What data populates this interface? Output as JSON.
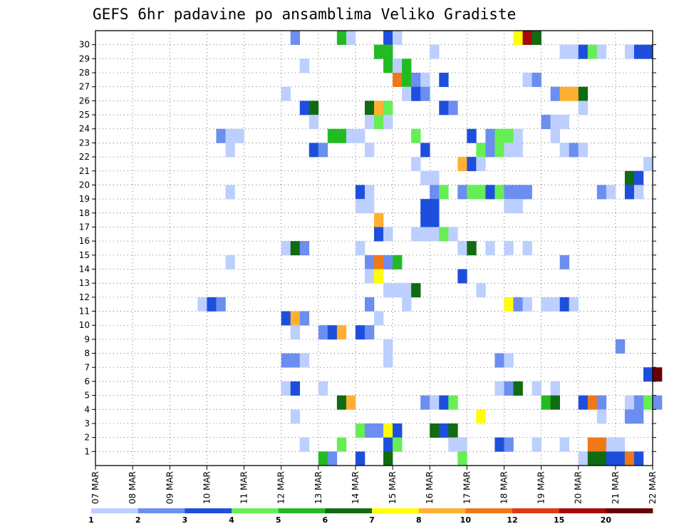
{
  "chart_data": {
    "type": "heatmap",
    "title": "GEFS 6hr padavine po ansamblima Veliko Gradiste",
    "xlabel": "",
    "ylabel": "",
    "x_categories": [
      "07 MAR",
      "08 MAR",
      "09 MAR",
      "10 MAR",
      "11 MAR",
      "12 MAR",
      "13 MAR",
      "14 MAR",
      "15 MAR",
      "16 MAR",
      "17 MAR",
      "18 MAR",
      "19 MAR",
      "20 MAR",
      "21 MAR",
      "22 MAR"
    ],
    "y_range": [
      0,
      30
    ],
    "y_ticks": [
      1,
      2,
      3,
      4,
      5,
      6,
      7,
      8,
      9,
      10,
      11,
      12,
      13,
      14,
      15,
      16,
      17,
      18,
      19,
      20,
      21,
      22,
      23,
      24,
      25,
      26,
      27,
      28,
      29,
      30
    ],
    "grid": true,
    "x_step_days": 0.25,
    "colorbar": {
      "levels": [
        "1",
        "2",
        "3",
        "4",
        "5",
        "6",
        "7",
        "8",
        "10",
        "12",
        "15",
        "20"
      ],
      "colors": [
        "#bccfff",
        "#6b8ef0",
        "#1e4fdc",
        "#66ee55",
        "#22bb22",
        "#116b11",
        "#ffff00",
        "#ffb030",
        "#f07818",
        "#e03a10",
        "#a80808",
        "#680000"
      ]
    },
    "cells": [
      [
        30,
        5.25,
        1
      ],
      [
        30,
        6.5,
        4
      ],
      [
        30,
        6.75,
        0
      ],
      [
        30,
        7.75,
        2
      ],
      [
        30,
        8.0,
        0
      ],
      [
        30,
        11.25,
        6
      ],
      [
        30,
        11.5,
        10
      ],
      [
        30,
        11.75,
        5
      ],
      [
        29,
        7.5,
        4
      ],
      [
        29,
        7.75,
        4
      ],
      [
        29,
        9.0,
        0
      ],
      [
        29,
        12.5,
        0
      ],
      [
        29,
        12.75,
        0
      ],
      [
        29,
        13.0,
        2
      ],
      [
        29,
        13.25,
        3
      ],
      [
        29,
        13.5,
        0
      ],
      [
        29,
        14.25,
        0
      ],
      [
        29,
        14.5,
        2
      ],
      [
        29,
        14.75,
        2
      ],
      [
        28,
        5.5,
        0
      ],
      [
        28,
        7.75,
        4
      ],
      [
        28,
        8.0,
        0
      ],
      [
        28,
        8.25,
        4
      ],
      [
        27,
        8.0,
        8
      ],
      [
        27,
        8.25,
        4
      ],
      [
        27,
        8.5,
        1
      ],
      [
        27,
        8.75,
        0
      ],
      [
        27,
        9.25,
        2
      ],
      [
        27,
        11.5,
        0
      ],
      [
        27,
        11.75,
        1
      ],
      [
        26,
        5.0,
        0
      ],
      [
        26,
        8.25,
        0
      ],
      [
        26,
        8.5,
        2
      ],
      [
        26,
        8.75,
        1
      ],
      [
        26,
        12.25,
        1
      ],
      [
        26,
        12.5,
        7
      ],
      [
        26,
        12.75,
        7
      ],
      [
        26,
        13.0,
        5
      ],
      [
        25,
        5.5,
        2
      ],
      [
        25,
        5.75,
        5
      ],
      [
        25,
        7.25,
        5
      ],
      [
        25,
        7.5,
        7
      ],
      [
        25,
        7.75,
        3
      ],
      [
        25,
        9.25,
        2
      ],
      [
        25,
        9.5,
        1
      ],
      [
        25,
        13.0,
        0
      ],
      [
        24,
        5.75,
        0
      ],
      [
        24,
        7.25,
        0
      ],
      [
        24,
        7.5,
        3
      ],
      [
        24,
        7.75,
        0
      ],
      [
        24,
        12.0,
        1
      ],
      [
        24,
        12.25,
        0
      ],
      [
        24,
        12.5,
        0
      ],
      [
        23,
        3.25,
        1
      ],
      [
        23,
        3.5,
        0
      ],
      [
        23,
        3.75,
        0
      ],
      [
        23,
        6.25,
        4
      ],
      [
        23,
        6.5,
        4
      ],
      [
        23,
        6.75,
        0
      ],
      [
        23,
        7.0,
        0
      ],
      [
        23,
        8.5,
        3
      ],
      [
        23,
        10.0,
        2
      ],
      [
        23,
        10.5,
        1
      ],
      [
        23,
        10.75,
        3
      ],
      [
        23,
        11.0,
        3
      ],
      [
        23,
        11.25,
        0
      ],
      [
        23,
        12.25,
        0
      ],
      [
        22,
        3.5,
        0
      ],
      [
        22,
        5.75,
        2
      ],
      [
        22,
        6.0,
        1
      ],
      [
        22,
        7.25,
        0
      ],
      [
        22,
        8.75,
        2
      ],
      [
        22,
        10.25,
        3
      ],
      [
        22,
        10.5,
        1
      ],
      [
        22,
        10.75,
        3
      ],
      [
        22,
        11.0,
        0
      ],
      [
        22,
        11.25,
        0
      ],
      [
        22,
        12.5,
        0
      ],
      [
        22,
        12.75,
        1
      ],
      [
        22,
        13.0,
        0
      ],
      [
        21,
        8.5,
        0
      ],
      [
        21,
        9.75,
        7
      ],
      [
        21,
        10.0,
        2
      ],
      [
        21,
        10.25,
        0
      ],
      [
        21,
        14.75,
        0
      ],
      [
        20,
        8.75,
        0
      ],
      [
        20,
        9.0,
        0
      ],
      [
        20,
        14.25,
        5
      ],
      [
        20,
        14.5,
        2
      ],
      [
        19,
        3.5,
        0
      ],
      [
        19,
        7.0,
        2
      ],
      [
        19,
        7.25,
        0
      ],
      [
        19,
        9.0,
        1
      ],
      [
        19,
        9.25,
        3
      ],
      [
        19,
        9.75,
        1
      ],
      [
        19,
        10.0,
        3
      ],
      [
        19,
        10.25,
        3
      ],
      [
        19,
        10.5,
        2
      ],
      [
        19,
        10.75,
        3
      ],
      [
        19,
        11.0,
        1
      ],
      [
        19,
        11.25,
        1
      ],
      [
        19,
        11.5,
        1
      ],
      [
        19,
        13.5,
        1
      ],
      [
        19,
        13.75,
        0
      ],
      [
        19,
        14.25,
        2
      ],
      [
        19,
        14.5,
        0
      ],
      [
        18,
        7.0,
        0
      ],
      [
        18,
        7.25,
        0
      ],
      [
        18,
        8.75,
        2
      ],
      [
        18,
        9.0,
        2
      ],
      [
        18,
        11.0,
        0
      ],
      [
        18,
        11.25,
        0
      ],
      [
        17,
        7.5,
        7
      ],
      [
        17,
        8.75,
        2
      ],
      [
        17,
        9.0,
        2
      ],
      [
        16,
        7.5,
        2
      ],
      [
        16,
        7.75,
        0
      ],
      [
        16,
        8.5,
        0
      ],
      [
        16,
        8.75,
        0
      ],
      [
        16,
        9.0,
        0
      ],
      [
        16,
        9.25,
        3
      ],
      [
        16,
        9.5,
        0
      ],
      [
        15,
        5.0,
        0
      ],
      [
        15,
        5.25,
        5
      ],
      [
        15,
        5.5,
        1
      ],
      [
        15,
        7.0,
        0
      ],
      [
        15,
        9.75,
        0
      ],
      [
        15,
        10.0,
        5
      ],
      [
        15,
        10.5,
        0
      ],
      [
        15,
        11.0,
        0
      ],
      [
        15,
        11.5,
        0
      ],
      [
        14,
        3.5,
        0
      ],
      [
        14,
        7.25,
        1
      ],
      [
        14,
        7.5,
        8
      ],
      [
        14,
        7.75,
        1
      ],
      [
        14,
        8.0,
        4
      ],
      [
        14,
        12.5,
        1
      ],
      [
        13,
        7.25,
        0
      ],
      [
        13,
        7.5,
        6
      ],
      [
        13,
        9.75,
        2
      ],
      [
        12,
        7.75,
        0
      ],
      [
        12,
        8.0,
        0
      ],
      [
        12,
        8.25,
        0
      ],
      [
        12,
        8.5,
        5
      ],
      [
        12,
        10.25,
        0
      ],
      [
        11,
        2.75,
        0
      ],
      [
        11,
        3.0,
        2
      ],
      [
        11,
        3.25,
        1
      ],
      [
        11,
        7.25,
        1
      ],
      [
        11,
        8.25,
        0
      ],
      [
        11,
        11.0,
        6
      ],
      [
        11,
        11.25,
        1
      ],
      [
        11,
        11.5,
        0
      ],
      [
        11,
        12.0,
        0
      ],
      [
        11,
        12.25,
        0
      ],
      [
        11,
        12.5,
        2
      ],
      [
        11,
        12.75,
        0
      ],
      [
        10,
        5.0,
        2
      ],
      [
        10,
        5.25,
        7
      ],
      [
        10,
        5.5,
        1
      ],
      [
        10,
        7.5,
        0
      ],
      [
        9,
        5.25,
        0
      ],
      [
        9,
        6.0,
        1
      ],
      [
        9,
        6.25,
        2
      ],
      [
        9,
        6.5,
        7
      ],
      [
        9,
        7.0,
        2
      ],
      [
        9,
        7.25,
        1
      ],
      [
        8,
        7.75,
        0
      ],
      [
        8,
        14.0,
        1
      ],
      [
        7,
        5.0,
        1
      ],
      [
        7,
        5.25,
        1
      ],
      [
        7,
        5.5,
        0
      ],
      [
        7,
        7.75,
        0
      ],
      [
        7,
        10.75,
        1
      ],
      [
        7,
        11.0,
        0
      ],
      [
        6,
        14.75,
        2
      ],
      [
        6,
        15.0,
        11
      ],
      [
        5,
        5.0,
        0
      ],
      [
        5,
        5.25,
        2
      ],
      [
        5,
        6.0,
        0
      ],
      [
        5,
        10.75,
        0
      ],
      [
        5,
        11.0,
        1
      ],
      [
        5,
        11.25,
        5
      ],
      [
        5,
        11.75,
        0
      ],
      [
        5,
        12.25,
        0
      ],
      [
        4,
        6.5,
        5
      ],
      [
        4,
        6.75,
        7
      ],
      [
        4,
        8.75,
        1
      ],
      [
        4,
        9.0,
        0
      ],
      [
        4,
        9.25,
        2
      ],
      [
        4,
        9.5,
        3
      ],
      [
        4,
        12.0,
        4
      ],
      [
        4,
        12.25,
        5
      ],
      [
        4,
        13.0,
        2
      ],
      [
        4,
        13.25,
        8
      ],
      [
        4,
        13.5,
        1
      ],
      [
        4,
        14.25,
        0
      ],
      [
        4,
        14.5,
        1
      ],
      [
        4,
        14.75,
        3
      ],
      [
        4,
        15.0,
        1
      ],
      [
        3,
        5.25,
        0
      ],
      [
        3,
        10.25,
        6
      ],
      [
        3,
        13.5,
        0
      ],
      [
        3,
        14.25,
        1
      ],
      [
        3,
        14.5,
        1
      ],
      [
        2,
        7.0,
        3
      ],
      [
        2,
        7.25,
        1
      ],
      [
        2,
        7.5,
        1
      ],
      [
        2,
        7.75,
        6
      ],
      [
        2,
        8.0,
        2
      ],
      [
        2,
        9.0,
        5
      ],
      [
        2,
        9.25,
        2
      ],
      [
        2,
        9.5,
        5
      ],
      [
        1,
        5.5,
        0
      ],
      [
        1,
        6.5,
        3
      ],
      [
        1,
        7.75,
        2
      ],
      [
        1,
        8.0,
        3
      ],
      [
        1,
        9.5,
        0
      ],
      [
        1,
        9.75,
        0
      ],
      [
        1,
        10.75,
        2
      ],
      [
        1,
        11.0,
        1
      ],
      [
        1,
        11.75,
        0
      ],
      [
        1,
        12.5,
        0
      ],
      [
        1,
        13.25,
        8
      ],
      [
        1,
        13.5,
        8
      ],
      [
        1,
        13.75,
        0
      ],
      [
        1,
        14.0,
        0
      ],
      [
        0,
        6.0,
        4
      ],
      [
        0,
        6.25,
        1
      ],
      [
        0,
        7.0,
        2
      ],
      [
        0,
        7.75,
        5
      ],
      [
        0,
        9.75,
        3
      ],
      [
        0,
        13.0,
        0
      ],
      [
        0,
        13.25,
        5
      ],
      [
        0,
        13.5,
        5
      ],
      [
        0,
        13.75,
        2
      ],
      [
        0,
        14.0,
        2
      ],
      [
        0,
        14.25,
        8
      ],
      [
        0,
        14.5,
        2
      ]
    ]
  }
}
